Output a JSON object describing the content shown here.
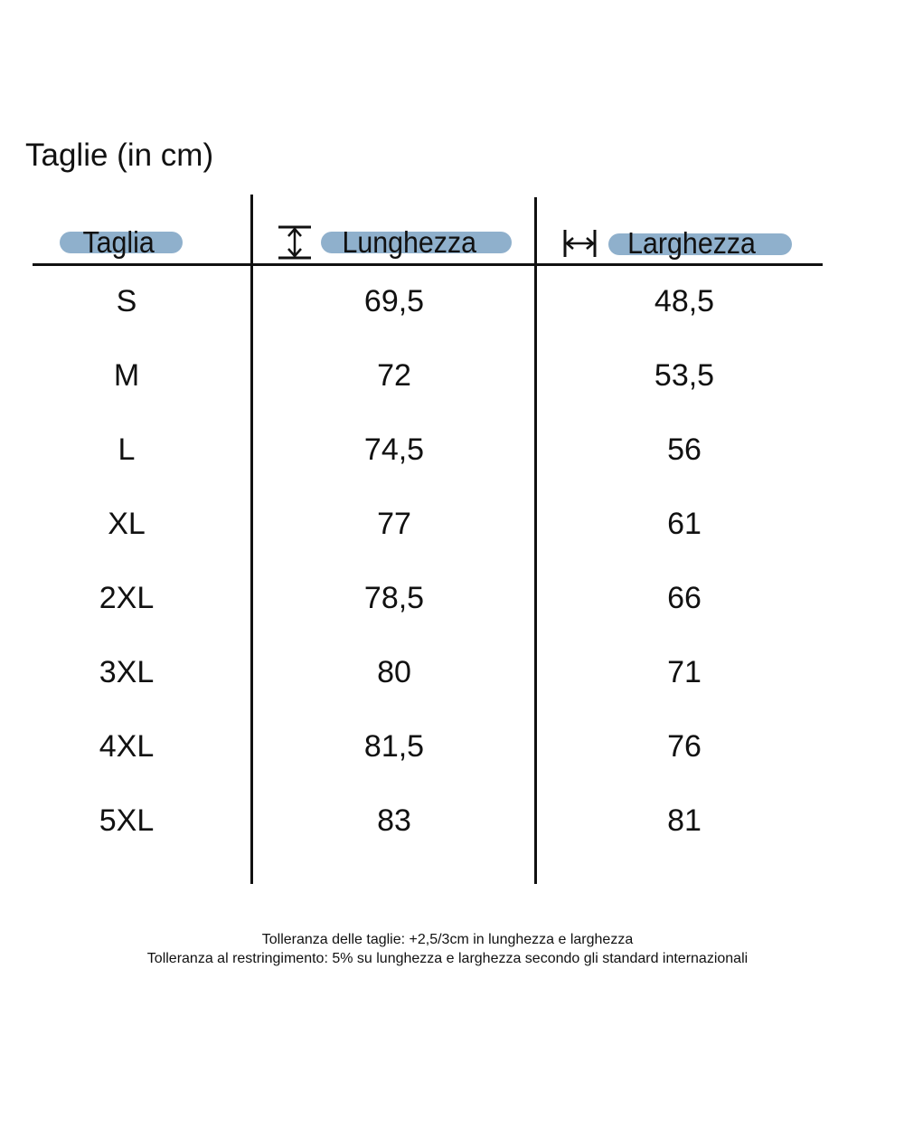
{
  "title": "Taglie (in cm)",
  "headers": {
    "size": "Taglia",
    "length": "Lunghezza",
    "width": "Larghezza"
  },
  "icons": {
    "length": "vertical-arrow-icon",
    "width": "horizontal-arrow-icon"
  },
  "accent_color": "#8fb0cc",
  "rows": [
    {
      "size": "S",
      "length": "69,5",
      "width": "48,5"
    },
    {
      "size": "M",
      "length": "72",
      "width": "53,5"
    },
    {
      "size": "L",
      "length": "74,5",
      "width": "56"
    },
    {
      "size": "XL",
      "length": "77",
      "width": "61"
    },
    {
      "size": "2XL",
      "length": "78,5",
      "width": "66"
    },
    {
      "size": "3XL",
      "length": "80",
      "width": "71"
    },
    {
      "size": "4XL",
      "length": "81,5",
      "width": "76"
    },
    {
      "size": "5XL",
      "length": "83",
      "width": "81"
    }
  ],
  "notes": [
    "Tolleranza delle taglie: +2,5/3cm in lunghezza e larghezza",
    "Tolleranza al restringimento: 5% su lunghezza e larghezza secondo gli standard internazionali"
  ]
}
